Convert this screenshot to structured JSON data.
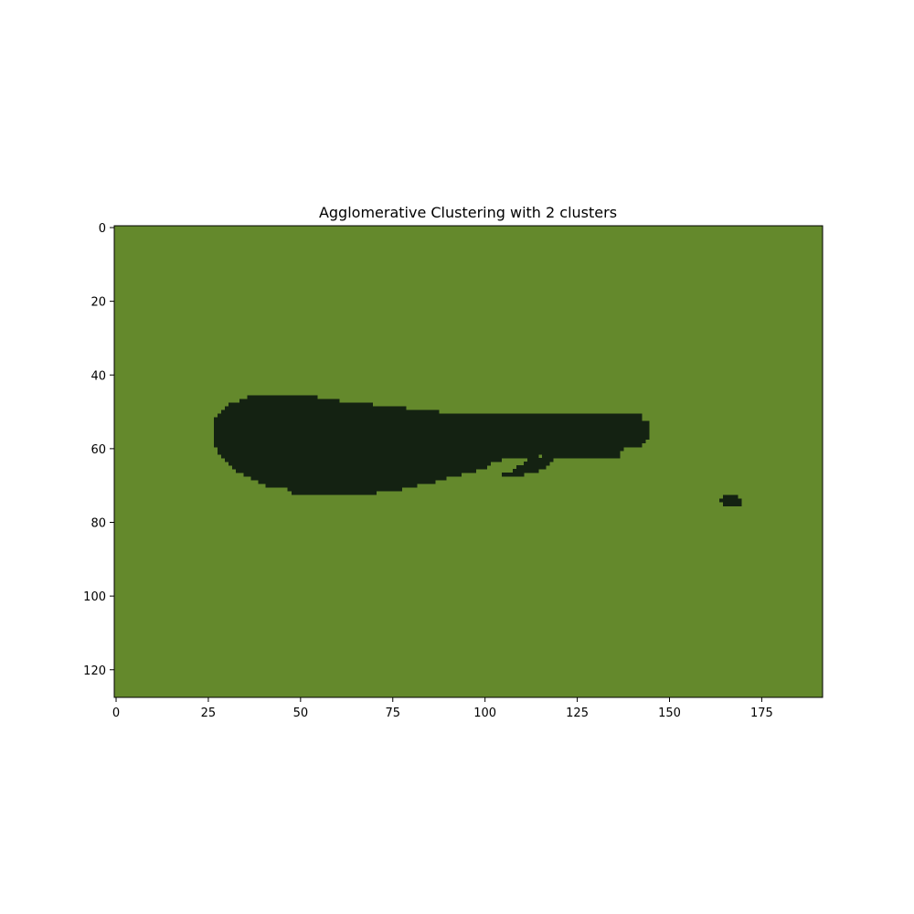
{
  "chart_data": {
    "type": "heatmap",
    "title": "Agglomerative Clustering with 2 clusters",
    "xlabel": "",
    "ylabel": "",
    "image_shape": {
      "rows": 128,
      "cols": 192
    },
    "xlim": [
      -0.5,
      191.5
    ],
    "ylim": [
      127.5,
      -0.5
    ],
    "x_ticks": [
      0,
      25,
      50,
      75,
      100,
      125,
      150,
      175
    ],
    "y_ticks": [
      0,
      20,
      40,
      60,
      80,
      100,
      120
    ],
    "colors": {
      "background_cluster": "#64892c",
      "object_cluster": "#142212"
    },
    "clusters": [
      {
        "label": 0,
        "color": "#64892c",
        "region": "background"
      },
      {
        "label": 1,
        "color": "#142212",
        "region": "whale shape and small blob"
      }
    ],
    "object_cluster_runs": [
      [
        46,
        36,
        54
      ],
      [
        47,
        34,
        60
      ],
      [
        48,
        31,
        69
      ],
      [
        49,
        30,
        78
      ],
      [
        50,
        29,
        87
      ],
      [
        51,
        28,
        142
      ],
      [
        52,
        27,
        142
      ],
      [
        53,
        27,
        144
      ],
      [
        54,
        27,
        144
      ],
      [
        55,
        27,
        144
      ],
      [
        56,
        27,
        144
      ],
      [
        57,
        27,
        144
      ],
      [
        58,
        27,
        143
      ],
      [
        59,
        27,
        142
      ],
      [
        60,
        28,
        137
      ],
      [
        61,
        28,
        136
      ],
      [
        62,
        29,
        114
      ],
      [
        63,
        30,
        104
      ],
      [
        64,
        31,
        101
      ],
      [
        65,
        32,
        100
      ],
      [
        66,
        33,
        97
      ],
      [
        67,
        35,
        93
      ],
      [
        68,
        37,
        89
      ],
      [
        69,
        39,
        86
      ],
      [
        70,
        41,
        81
      ],
      [
        71,
        47,
        77
      ],
      [
        72,
        48,
        70
      ],
      [
        62,
        116,
        136
      ],
      [
        63,
        112,
        118
      ],
      [
        64,
        111,
        117
      ],
      [
        65,
        109,
        116
      ],
      [
        66,
        108,
        114
      ],
      [
        67,
        105,
        110
      ],
      [
        73,
        165,
        168
      ],
      [
        74,
        164,
        169
      ],
      [
        75,
        165,
        169
      ]
    ]
  }
}
